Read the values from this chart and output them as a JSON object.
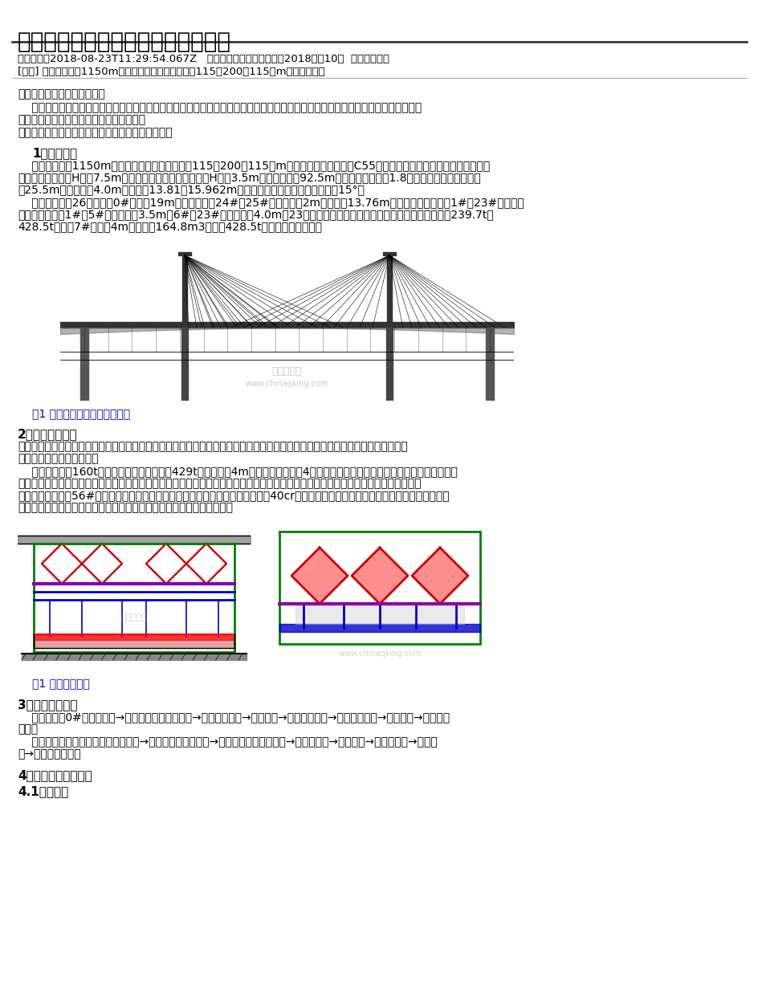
{
  "title": "菱形挂篮施工工艺改进措施应用研究",
  "meta_line": "发表时间：2018-08-23T11:29:54.067Z   来源：《建筑学研究前沿》2018年第10期  作者：朱枪围",
  "guide_line": "[导读] 深门特大桥长1150m，其中主桥上部结构采用（115＋200＋115）m矮塔斜拉桥。",
  "company": "广东省长大公路工程有限公司",
  "abs_line1": "    摘要：深门特大桥主桥矮塔斜拉桥箱梁，桥面宽度宽，单节段箱梁重，通过对常规挂篮施工进行结构改造及工艺改进，大大的提高了",
  "abs_line2": "施工功效，取得了良好的社会及经济效益。",
  "keywords": "关键词：挂篮施工；工艺介绍；工艺改进；应用研究",
  "sec1_title": "1、工程概况",
  "sec1_p1_l1": "    深门特大桥长1150m，其中主桥上部结构采用（115＋200＋115）m矮塔斜拉桥，箱梁采用C55混凝土，单箱三室变截面形式，箱梁根",
  "sec1_p1_l2": "部梁体中心线梁高H根＝7.5m，跨中及端头梁体中心线梁高H中＝3.5m，根部横梁起92.5m范围内箱梁高采用1.8次抛物线变化。箱梁顶板",
  "sec1_p1_l3": "宽25.5m，悬臂板长4.0m，底板宽13.81～15.962m，箱梁边室斜腹板与竖直面夹角为15°。",
  "sec1_p2_l1": "    全桥箱梁共分26块梁段，0#梁段长19m为根部梁段，24#、25#梁段分别为2m合拢段和13.76m边跨现浇段；其余的1#～23#梁段为普",
  "sec1_p2_l2": "通箱梁段，其中1#～5#梁段长度为3.5m，6#～23#梁段长度为4.0m，23块普通梁段均采用挂篮悬臂浇筑法施工。节段重量239.7t～",
  "sec1_p2_l3": "428.5t，其中7#节段长4m、砼方量164.8m3、重量428.5t，为全桥最重节段。",
  "fig1_caption": "图1 深门特大桥主桥总体布置图",
  "sec2_title": "2、菱形挂篮简介",
  "sec2_p1_l1": "菱形吊架挂篮主要由以下构件组成：桥面菱形吊架、横梁系统、前支腿、反扣轮、纵移轨道、翼板及外侧模板系统、底篮、内模板系",
  "sec2_p1_l2": "统、后锚系统、装修系统。",
  "sec2_p2_l1": "    菱形挂篮自重160t，可适应本桥梁最大梁重429t，最大梁长4m施工。本桥共投入4套挂篮施工。挂篮用既有菱形吊架挂篮改造，由于",
  "sec2_p2_l2": "箱梁节段重量大，挂篮由四榀菱形主桁构成；连接系统采用吊杆加吊带的组合形式，以方便底篮调节；横梁（包括前上横梁、前下横梁及",
  "sec2_p2_l3": "后横梁）采用双拼56#工字钢，确保主桁受力均衡及保证底篮刚度；后锚系统采用40cr螺杆锚固的形式，减少以往采用精轧螺纹钢锚固的安",
  "sec2_p2_l4": "全隐患；同时为增加施工安全性及施工效率，在底篮后面增设装修挂篮。",
  "fig2_caption": "图1 挂篮结构总图",
  "sec3_title": "3、施工工艺流程",
  "sec3_p1_l1": "    挂篮安装：0#块施工完毕→挂篮菱形桁架安装施工→前吊系统安装→底篮吊装→挂篮预压试验→外侧模架安装→测量调篮→进入箱梁",
  "sec3_p1_l2": "施工。",
  "sec3_p2_l1": "    箱梁施工：底腹板钢筋、预应力安装→内侧模、顶板模安装→顶板钢筋、预应力安装→浇筑混凝土→养生等强→张拉、压浆→挂篮前",
  "sec3_p2_l2": "移→下一梁段施工。",
  "sec4_title": "4、挂篮施工工艺介绍",
  "sec4_1_title": "4.1挂篮安装",
  "bg_color": "#ffffff",
  "text_color": "#000000",
  "blue_color": "#0000cc",
  "gray_color": "#555555",
  "title_size": 20,
  "meta_size": 9.5,
  "body_size": 10,
  "sec_title_size": 11
}
